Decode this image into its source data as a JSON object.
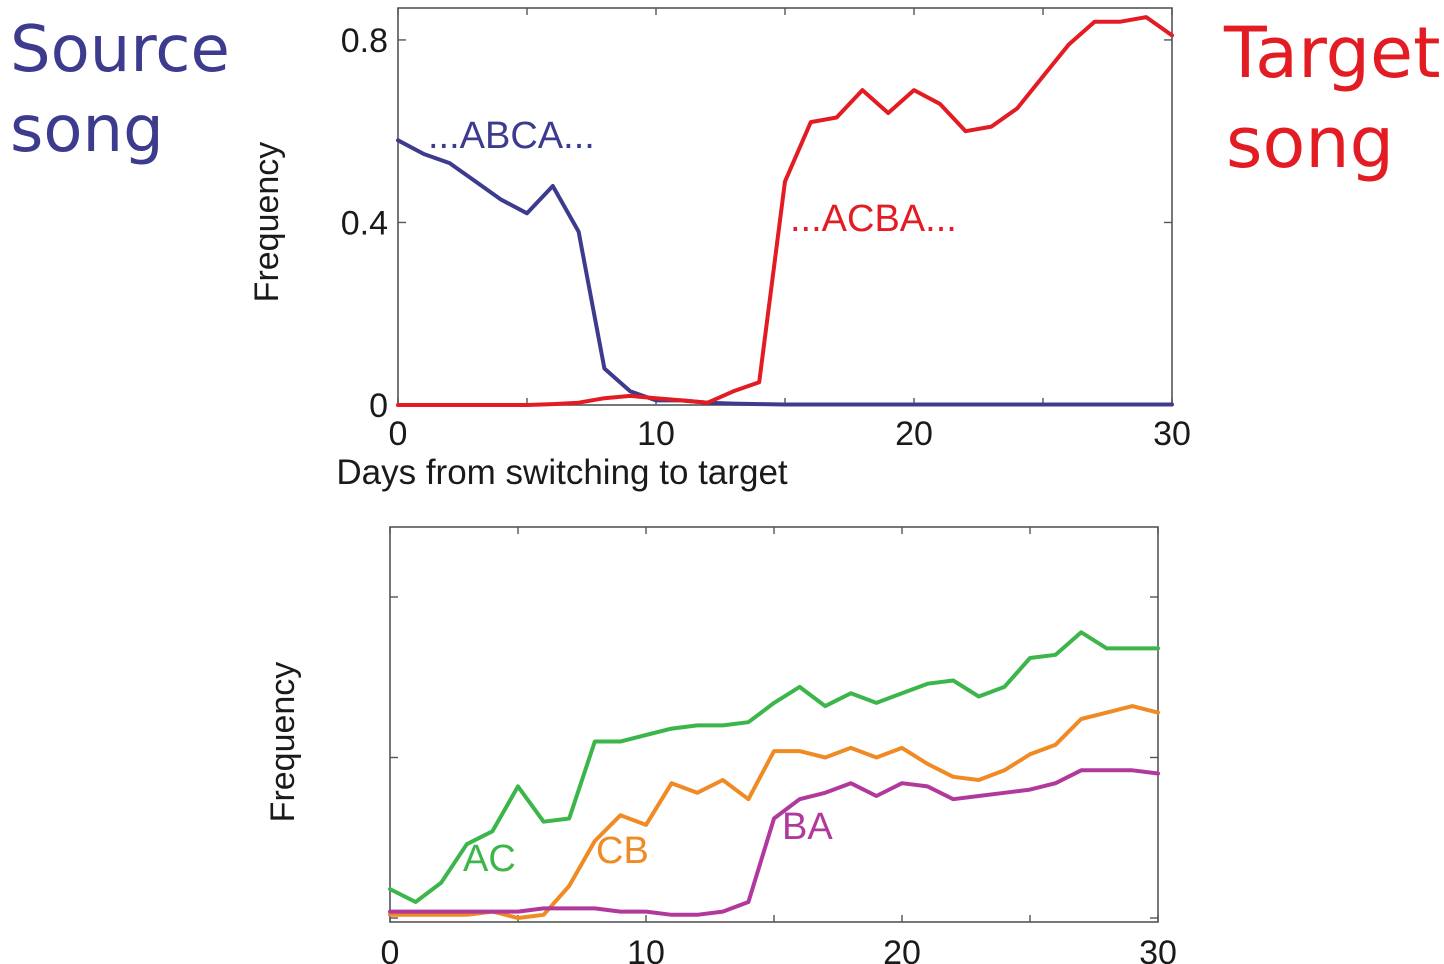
{
  "labels": {
    "source": [
      "Source",
      "song"
    ],
    "target": [
      "Target",
      "song"
    ]
  },
  "colors": {
    "source": "#3d3b8e",
    "target": "#e31b23",
    "ac": "#3cb54a",
    "cb": "#f08a24",
    "ba": "#b0399b"
  },
  "chart_data": [
    {
      "type": "line",
      "xlabel": "Days from switching to target",
      "ylabel": "Frequency",
      "xlim": [
        0,
        30
      ],
      "ylim": [
        0,
        0.87
      ],
      "xticks": [
        0,
        10,
        20,
        30
      ],
      "yticks": [
        0,
        0.4,
        0.8
      ],
      "ytick_labels": [
        "0",
        "0.4",
        "0.8"
      ],
      "series": [
        {
          "name": "...ABCA...",
          "color": "#3d3b8e",
          "x": [
            0,
            1,
            2,
            3,
            4,
            5,
            6,
            7,
            8,
            9,
            10,
            11,
            12,
            13,
            14,
            15,
            16,
            17,
            18,
            19,
            20,
            21,
            22,
            23,
            24,
            25,
            26,
            27,
            28,
            29,
            30
          ],
          "values": [
            0.58,
            0.55,
            0.53,
            0.49,
            0.45,
            0.42,
            0.48,
            0.38,
            0.08,
            0.03,
            0.01,
            0.01,
            0.005,
            0.003,
            0.002,
            0.001,
            0.001,
            0.001,
            0.001,
            0.001,
            0.001,
            0.001,
            0.001,
            0.001,
            0.001,
            0.001,
            0.001,
            0.001,
            0.001,
            0.001,
            0.001
          ]
        },
        {
          "name": "...ACBA...",
          "color": "#e31b23",
          "x": [
            0,
            1,
            2,
            3,
            4,
            5,
            6,
            7,
            8,
            9,
            10,
            11,
            12,
            13,
            14,
            15,
            16,
            17,
            18,
            19,
            20,
            21,
            22,
            23,
            24,
            25,
            26,
            27,
            28,
            29,
            30
          ],
          "values": [
            0,
            0,
            0,
            0,
            0,
            0,
            0.002,
            0.005,
            0.015,
            0.02,
            0.015,
            0.01,
            0.005,
            0.03,
            0.05,
            0.49,
            0.62,
            0.63,
            0.69,
            0.64,
            0.69,
            0.66,
            0.6,
            0.61,
            0.65,
            0.72,
            0.79,
            0.84,
            0.84,
            0.85,
            0.81
          ]
        }
      ]
    },
    {
      "type": "line",
      "ylabel": "Frequency",
      "xlim": [
        0,
        30
      ],
      "ylim": [
        0,
        1
      ],
      "xticks": [
        0,
        10,
        20,
        30
      ],
      "yticks": [
        0,
        0.5,
        1
      ],
      "ytick_labels": [
        "",
        "",
        ""
      ],
      "series": [
        {
          "name": "AC",
          "color": "#3cb54a",
          "x": [
            0,
            1,
            2,
            3,
            4,
            5,
            6,
            7,
            8,
            9,
            10,
            11,
            12,
            13,
            14,
            15,
            16,
            17,
            18,
            19,
            20,
            21,
            22,
            23,
            24,
            25,
            26,
            27,
            28,
            29,
            30
          ],
          "values": [
            0.09,
            0.05,
            0.11,
            0.23,
            0.27,
            0.41,
            0.3,
            0.31,
            0.55,
            0.55,
            0.57,
            0.59,
            0.6,
            0.6,
            0.61,
            0.67,
            0.72,
            0.66,
            0.7,
            0.67,
            0.7,
            0.73,
            0.74,
            0.69,
            0.72,
            0.81,
            0.82,
            0.89,
            0.84,
            0.84,
            0.84
          ]
        },
        {
          "name": "CB",
          "color": "#f08a24",
          "x": [
            0,
            1,
            2,
            3,
            4,
            5,
            6,
            7,
            8,
            9,
            10,
            11,
            12,
            13,
            14,
            15,
            16,
            17,
            18,
            19,
            20,
            21,
            22,
            23,
            24,
            25,
            26,
            27,
            28,
            29,
            30
          ],
          "values": [
            0.01,
            0.01,
            0.01,
            0.01,
            0.02,
            0.0,
            0.01,
            0.1,
            0.24,
            0.32,
            0.29,
            0.42,
            0.39,
            0.43,
            0.37,
            0.52,
            0.52,
            0.5,
            0.53,
            0.5,
            0.53,
            0.48,
            0.44,
            0.43,
            0.46,
            0.51,
            0.54,
            0.62,
            0.64,
            0.66,
            0.64
          ]
        },
        {
          "name": "BA",
          "color": "#b0399b",
          "x": [
            0,
            1,
            2,
            3,
            4,
            5,
            6,
            7,
            8,
            9,
            10,
            11,
            12,
            13,
            14,
            15,
            16,
            17,
            18,
            19,
            20,
            21,
            22,
            23,
            24,
            25,
            26,
            27,
            28,
            29,
            30
          ],
          "values": [
            0.02,
            0.02,
            0.02,
            0.02,
            0.02,
            0.02,
            0.03,
            0.03,
            0.03,
            0.02,
            0.02,
            0.01,
            0.01,
            0.02,
            0.05,
            0.31,
            0.37,
            0.39,
            0.42,
            0.38,
            0.42,
            0.41,
            0.37,
            0.38,
            0.39,
            0.4,
            0.42,
            0.46,
            0.46,
            0.46,
            0.45
          ]
        }
      ]
    }
  ]
}
